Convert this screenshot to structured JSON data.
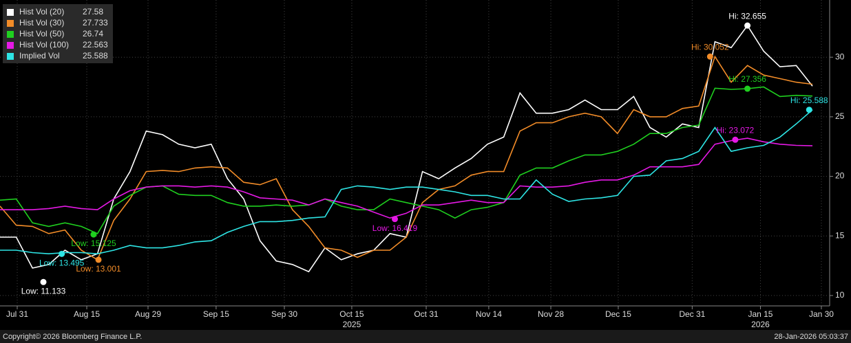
{
  "chart_data": {
    "type": "line",
    "x": [
      0,
      1,
      2,
      3,
      4,
      5,
      6,
      7,
      8,
      9,
      10,
      11,
      12,
      13,
      14,
      15,
      16,
      17,
      18,
      19,
      20,
      21,
      22,
      23,
      24,
      25,
      26,
      27,
      28,
      29,
      30,
      31,
      32,
      33,
      34,
      35,
      36,
      37,
      38,
      39,
      40,
      41,
      42,
      43,
      44,
      45,
      46,
      47,
      48,
      49,
      50
    ],
    "xlim": [
      0,
      51.06
    ],
    "xticks": [
      {
        "value": 1.06,
        "label": "Jul 31"
      },
      {
        "value": 5.34,
        "label": "Aug 15"
      },
      {
        "value": 9.11,
        "label": "Aug 29"
      },
      {
        "value": 13.3,
        "label": "Sep 15"
      },
      {
        "value": 17.5,
        "label": "Sep 30"
      },
      {
        "value": 21.65,
        "label": "Oct 15"
      },
      {
        "value": 26.23,
        "label": "Oct 31"
      },
      {
        "value": 30.08,
        "label": "Nov 14"
      },
      {
        "value": 33.9,
        "label": "Nov 28"
      },
      {
        "value": 38.05,
        "label": "Dec 15"
      },
      {
        "value": 42.6,
        "label": "Dec 31"
      },
      {
        "value": 46.8,
        "label": "Jan 15"
      },
      {
        "value": 50.55,
        "label": "Jan 30"
      }
    ],
    "year_labels": [
      {
        "value": 21.65,
        "label": "2025"
      },
      {
        "value": 46.8,
        "label": "2026"
      }
    ],
    "ylim": [
      9.13,
      34.8
    ],
    "yticks": [
      10,
      15,
      20,
      25,
      30
    ],
    "grid": true,
    "series": [
      {
        "name": "Hist Vol (20)",
        "color": "#ffffff",
        "values": [
          14.9,
          14.9,
          12.3,
          12.6,
          13.8,
          13.0,
          13.5,
          18.1,
          20.4,
          23.8,
          23.5,
          22.7,
          22.4,
          22.7,
          19.8,
          18.1,
          14.6,
          12.9,
          12.6,
          12.0,
          14.0,
          13.0,
          13.5,
          13.8,
          15.2,
          14.9,
          20.4,
          19.8,
          20.7,
          21.5,
          22.7,
          23.3,
          27.0,
          25.3,
          25.3,
          25.6,
          26.4,
          25.6,
          25.6,
          26.7,
          24.1,
          23.3,
          24.4,
          24.1,
          31.3,
          30.8,
          32.655,
          30.5,
          29.2,
          29.3,
          27.58
        ],
        "annotations": [
          {
            "text": "Hi: 32.655",
            "x": 46.0,
            "value": 32.655
          },
          {
            "text": "Low: 11.133",
            "x": 2.67,
            "value": 11.133
          }
        ]
      },
      {
        "name": "Hist Vol (30)",
        "color": "#f28c28",
        "values": [
          17.5,
          15.9,
          15.8,
          15.2,
          15.5,
          13.8,
          13.0,
          16.3,
          18.1,
          20.4,
          20.5,
          20.4,
          20.7,
          20.8,
          20.7,
          19.5,
          19.3,
          19.8,
          17.2,
          15.8,
          14.0,
          13.8,
          13.2,
          13.8,
          13.8,
          14.9,
          17.8,
          18.9,
          19.2,
          20.1,
          20.4,
          20.4,
          23.8,
          24.5,
          24.5,
          25.0,
          25.3,
          25.0,
          23.6,
          25.6,
          25.0,
          25.0,
          25.7,
          25.9,
          30.052,
          27.9,
          29.3,
          28.5,
          28.2,
          27.9,
          27.733
        ],
        "annotations": [
          {
            "text": "Hi: 30.052",
            "x": 43.7,
            "value": 30.052
          },
          {
            "text": "Low: 13.001",
            "x": 6.06,
            "value": 13.001
          }
        ]
      },
      {
        "name": "Hist Vol (50)",
        "color": "#1fd01f",
        "values": [
          18.0,
          18.1,
          16.1,
          15.8,
          16.1,
          15.8,
          15.2,
          17.5,
          18.4,
          19.1,
          19.2,
          18.5,
          18.4,
          18.4,
          17.8,
          17.5,
          17.5,
          17.6,
          17.5,
          17.6,
          18.1,
          17.5,
          17.2,
          17.2,
          18.1,
          17.8,
          17.5,
          17.2,
          16.5,
          17.2,
          17.4,
          17.8,
          20.1,
          20.7,
          20.7,
          21.3,
          21.8,
          21.8,
          22.1,
          22.7,
          23.6,
          23.6,
          24.1,
          24.3,
          27.4,
          27.3,
          27.356,
          27.5,
          26.7,
          26.8,
          26.74
        ],
        "annotations": [
          {
            "text": "Hi: 27.356",
            "x": 46.0,
            "value": 27.356
          },
          {
            "text": "Low: 15.125",
            "x": 5.76,
            "value": 15.125
          }
        ]
      },
      {
        "name": "Hist Vol (100)",
        "color": "#e619e6",
        "values": [
          17.2,
          17.2,
          17.2,
          17.3,
          17.5,
          17.3,
          17.2,
          18.1,
          18.8,
          19.1,
          19.2,
          19.2,
          19.1,
          19.2,
          19.1,
          18.7,
          18.2,
          18.1,
          18.0,
          17.6,
          18.1,
          17.8,
          17.5,
          17.0,
          16.5,
          16.9,
          17.6,
          17.6,
          17.8,
          18.0,
          17.8,
          17.8,
          19.2,
          19.1,
          19.1,
          19.2,
          19.5,
          19.7,
          19.7,
          20.1,
          20.8,
          20.8,
          20.8,
          21.0,
          22.7,
          23.0,
          23.2,
          22.9,
          22.7,
          22.6,
          22.563
        ],
        "annotations": [
          {
            "text": "Hi: 23.072",
            "x": 45.25,
            "value": 23.072
          },
          {
            "text": "Low: 16.419",
            "x": 24.3,
            "value": 16.419
          }
        ]
      },
      {
        "name": "Implied Vol",
        "color": "#2ee6e6",
        "values": [
          13.8,
          13.8,
          13.6,
          13.5,
          13.6,
          13.6,
          13.5,
          13.8,
          14.2,
          14.0,
          14.0,
          14.2,
          14.5,
          14.6,
          15.3,
          15.8,
          16.2,
          16.2,
          16.3,
          16.5,
          16.6,
          18.9,
          19.2,
          19.1,
          18.9,
          19.1,
          19.1,
          18.9,
          18.7,
          18.4,
          18.4,
          18.1,
          18.1,
          19.7,
          18.5,
          17.9,
          18.1,
          18.2,
          18.4,
          20.0,
          20.1,
          21.3,
          21.5,
          22.1,
          24.1,
          22.1,
          22.4,
          22.6,
          23.3,
          24.4,
          25.588
        ],
        "annotations": [
          {
            "text": "Hi: 25.588",
            "x": 49.8,
            "value": 25.588
          },
          {
            "text": "Low: 13.495",
            "x": 3.8,
            "value": 13.495
          }
        ]
      }
    ],
    "footer_left": "Copyright© 2026 Bloomberg Finance L.P.",
    "footer_right": "28-Jan-2026 05:03:37"
  }
}
